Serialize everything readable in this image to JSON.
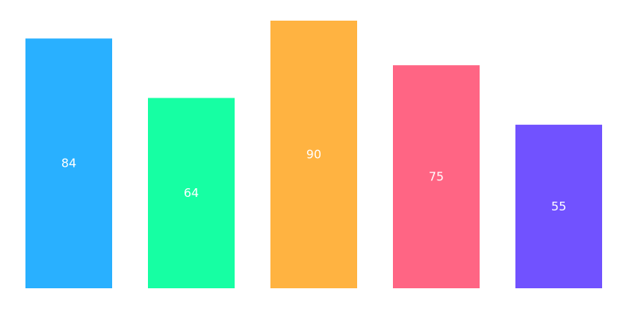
{
  "chart_data": {
    "type": "bar",
    "title": "",
    "xlabel": "",
    "ylabel": "",
    "ylim": [
      0,
      90
    ],
    "grid": false,
    "legend": "none",
    "values": [
      84,
      64,
      90,
      75,
      55
    ],
    "value_labels": [
      "84",
      "64",
      "90",
      "75",
      "55"
    ],
    "colors": [
      "#29b0ff",
      "#16ffa3",
      "#ffb341",
      "#ff6584",
      "#7152ff"
    ]
  }
}
